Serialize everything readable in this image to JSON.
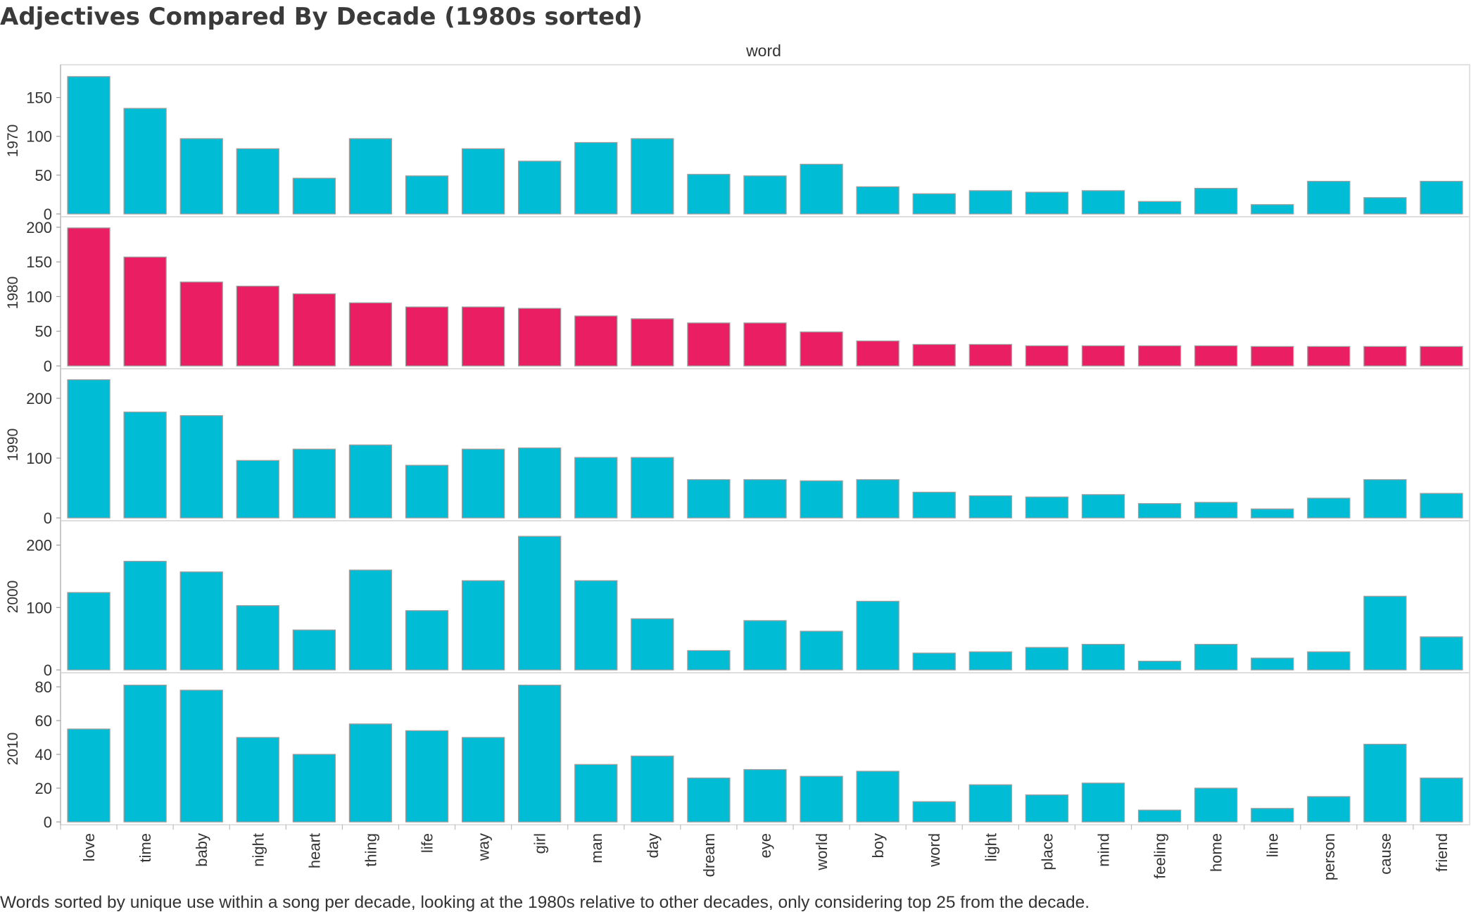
{
  "title": "Adjectives Compared By Decade (1980s sorted)",
  "column_header": "word",
  "caption": "Words sorted by unique use within a song per decade, looking at the 1980s relative to other decades, only considering top 25 from the decade.",
  "colors": {
    "default_bar": "#00BCD4",
    "highlight_bar": "#E91E63",
    "bar_outline": "#9e9e9e",
    "panel_border": "#d9d9d9",
    "grid": "#e6e6e6"
  },
  "chart_data": {
    "type": "bar",
    "categories": [
      "love",
      "time",
      "baby",
      "night",
      "heart",
      "thing",
      "life",
      "way",
      "girl",
      "man",
      "day",
      "dream",
      "eye",
      "world",
      "boy",
      "word",
      "light",
      "place",
      "mind",
      "feeling",
      "home",
      "line",
      "person",
      "cause",
      "friend"
    ],
    "series": [
      {
        "name": "1970",
        "highlight": false,
        "ylim": [
          0,
          185
        ],
        "yticks": [
          0,
          50,
          100,
          150
        ],
        "values": [
          177,
          136,
          97,
          84,
          46,
          97,
          49,
          84,
          68,
          92,
          97,
          51,
          49,
          64,
          35,
          26,
          30,
          28,
          30,
          16,
          33,
          12,
          42,
          21,
          42
        ]
      },
      {
        "name": "1980",
        "highlight": true,
        "ylim": [
          0,
          207
        ],
        "yticks": [
          0,
          50,
          100,
          150,
          200
        ],
        "values": [
          199,
          157,
          121,
          115,
          104,
          91,
          85,
          85,
          83,
          72,
          68,
          62,
          62,
          49,
          36,
          31,
          31,
          29,
          29,
          29,
          29,
          28,
          28,
          28,
          28
        ]
      },
      {
        "name": "1990",
        "highlight": false,
        "ylim": [
          0,
          240
        ],
        "yticks": [
          0,
          100,
          200
        ],
        "values": [
          231,
          177,
          171,
          96,
          115,
          122,
          88,
          115,
          117,
          101,
          101,
          64,
          64,
          62,
          64,
          43,
          37,
          35,
          39,
          24,
          26,
          15,
          33,
          64,
          41
        ]
      },
      {
        "name": "2000",
        "highlight": false,
        "ylim": [
          0,
          230
        ],
        "yticks": [
          0,
          100,
          200
        ],
        "values": [
          124,
          174,
          157,
          103,
          64,
          160,
          95,
          143,
          214,
          143,
          82,
          31,
          79,
          62,
          110,
          27,
          29,
          36,
          41,
          14,
          41,
          19,
          29,
          118,
          53
        ]
      },
      {
        "name": "2010",
        "highlight": false,
        "ylim": [
          0,
          85
        ],
        "yticks": [
          0,
          20,
          40,
          60,
          80
        ],
        "values": [
          55,
          81,
          78,
          50,
          40,
          58,
          54,
          50,
          81,
          34,
          39,
          26,
          31,
          27,
          30,
          12,
          22,
          16,
          23,
          7,
          20,
          8,
          15,
          46,
          26
        ]
      }
    ]
  }
}
